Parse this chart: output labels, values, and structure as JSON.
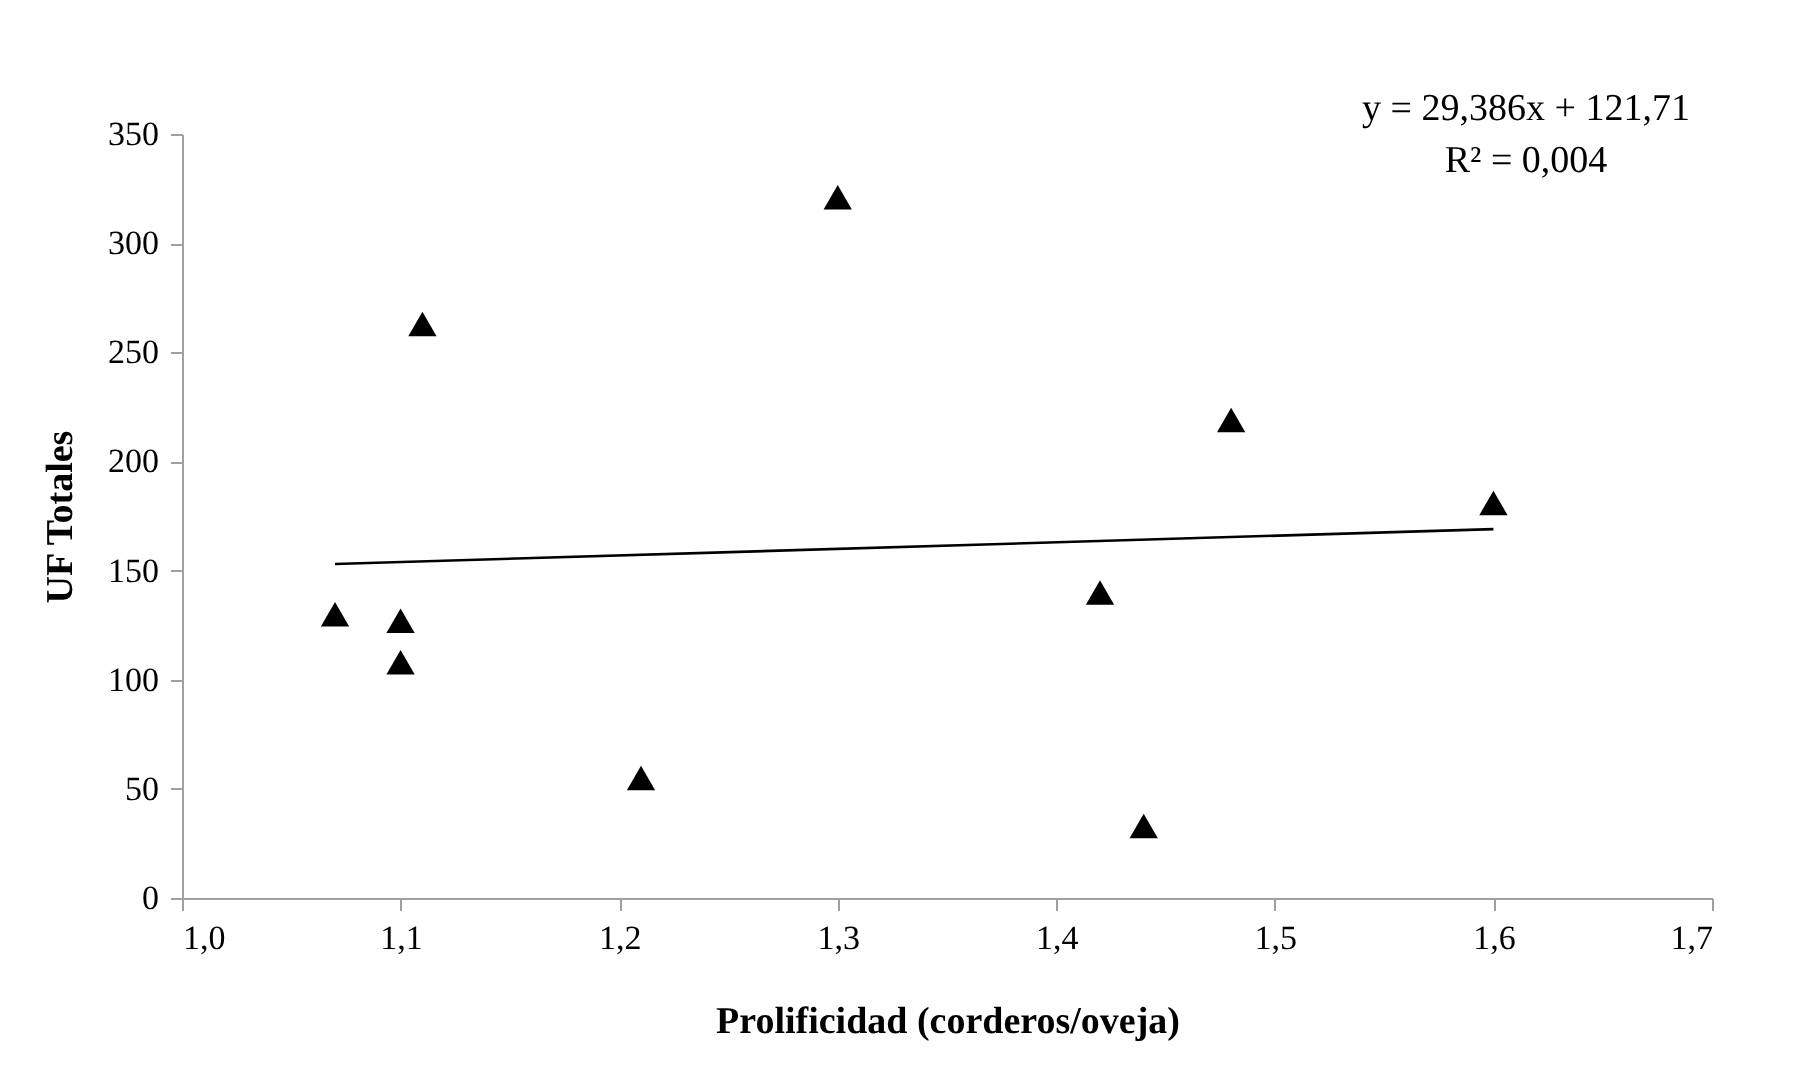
{
  "chart_data": {
    "type": "scatter",
    "xlabel": "Prolificidad (corderos/oveja)",
    "ylabel": "UF Totales",
    "xlim": [
      1.0,
      1.7
    ],
    "xticks": [
      {
        "value": 1.0,
        "label": "1,0"
      },
      {
        "value": 1.1,
        "label": "1,1"
      },
      {
        "value": 1.2,
        "label": "1,2"
      },
      {
        "value": 1.3,
        "label": "1,3"
      },
      {
        "value": 1.4,
        "label": "1,4"
      },
      {
        "value": 1.5,
        "label": "1,5"
      },
      {
        "value": 1.6,
        "label": "1,6"
      },
      {
        "value": 1.7,
        "label": "1,7"
      }
    ],
    "ylim": [
      0,
      350
    ],
    "yticks": [
      0,
      50,
      100,
      150,
      200,
      250,
      300,
      350
    ],
    "grid": false,
    "legend": false,
    "series": [
      {
        "marker": "triangle",
        "color": "#000000",
        "x": [
          1.07,
          1.1,
          1.1,
          1.11,
          1.21,
          1.3,
          1.42,
          1.44,
          1.48,
          1.6
        ],
        "values": [
          130,
          127,
          108,
          263,
          55,
          321,
          140,
          33,
          219,
          181
        ]
      },
      {
        "type": "line",
        "color": "#000000",
        "x": [
          1.07,
          1.6
        ],
        "values": [
          153,
          169
        ]
      }
    ],
    "annotations": [
      "y = 29,386x + 121,71",
      "R² = 0,004"
    ]
  }
}
